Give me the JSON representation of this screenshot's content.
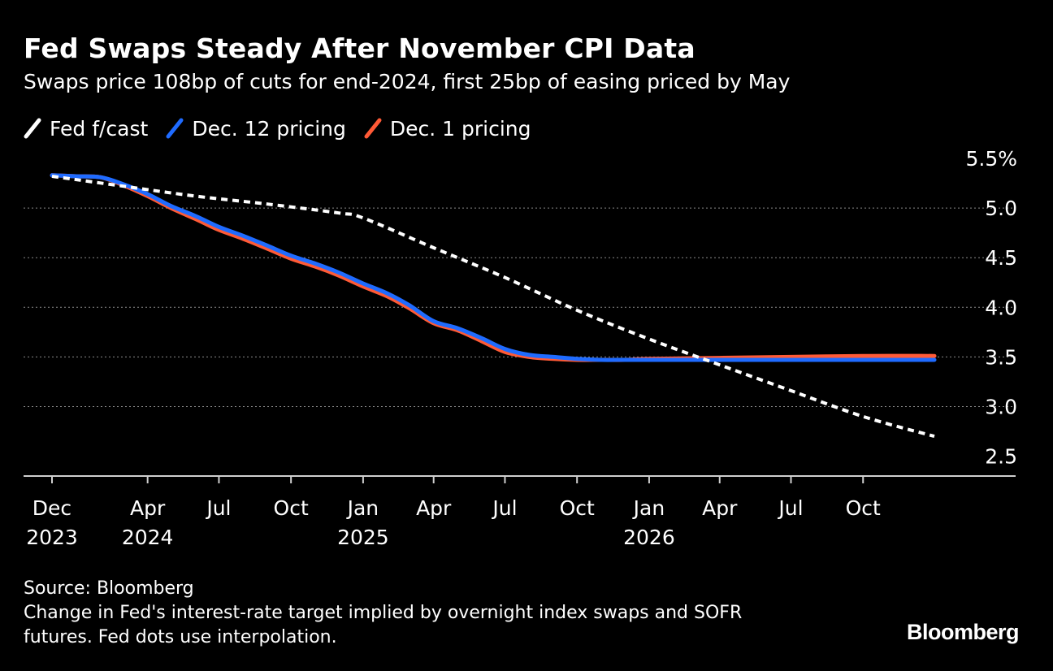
{
  "header": {
    "title": "Fed Swaps Steady After November CPI Data",
    "subtitle": "Swaps price 108bp of cuts for end-2024, first 25bp of easing priced by May"
  },
  "legend": [
    {
      "label": "Fed f/cast",
      "color": "#ffffff",
      "style": "dashed"
    },
    {
      "label": "Dec. 12 pricing",
      "color": "#1f6bff",
      "style": "solid"
    },
    {
      "label": "Dec. 1 pricing",
      "color": "#ff5a36",
      "style": "solid"
    }
  ],
  "footer": {
    "source": "Source: Bloomberg",
    "note_line1": "Change in Fed's interest-rate target implied by overnight index swaps and SOFR",
    "note_line2": "futures. Fed dots use interpolation."
  },
  "brand": "Bloomberg",
  "chart_data": {
    "type": "line",
    "title": "Fed Swaps Steady After November CPI Data",
    "subtitle": "Swaps price 108bp of cuts for end-2024, first 25bp of easing priced by May",
    "xlabel": "",
    "ylabel": "",
    "ylim": [
      2.3,
      5.5
    ],
    "xlim": [
      "2023-12-01",
      "2026-12-31"
    ],
    "yticks": [
      {
        "value": 5.5,
        "label": "5.5%"
      },
      {
        "value": 5.0,
        "label": "5.0"
      },
      {
        "value": 4.5,
        "label": "4.5"
      },
      {
        "value": 4.0,
        "label": "4.0"
      },
      {
        "value": 3.5,
        "label": "3.5"
      },
      {
        "value": 3.0,
        "label": "3.0"
      },
      {
        "value": 2.5,
        "label": "2.5"
      }
    ],
    "xticks": [
      {
        "date": "2023-12-01",
        "line1": "Dec",
        "line2": "2023"
      },
      {
        "date": "2024-04-01",
        "line1": "Apr",
        "line2": "2024"
      },
      {
        "date": "2024-07-01",
        "line1": "Jul",
        "line2": ""
      },
      {
        "date": "2024-10-01",
        "line1": "Oct",
        "line2": ""
      },
      {
        "date": "2025-01-01",
        "line1": "Jan",
        "line2": "2025"
      },
      {
        "date": "2025-04-01",
        "line1": "Apr",
        "line2": ""
      },
      {
        "date": "2025-07-01",
        "line1": "Jul",
        "line2": ""
      },
      {
        "date": "2025-10-01",
        "line1": "Oct",
        "line2": ""
      },
      {
        "date": "2026-01-01",
        "line1": "Jan",
        "line2": "2026"
      },
      {
        "date": "2026-04-01",
        "line1": "Apr",
        "line2": ""
      },
      {
        "date": "2026-07-01",
        "line1": "Jul",
        "line2": ""
      },
      {
        "date": "2026-10-01",
        "line1": "Oct",
        "line2": ""
      }
    ],
    "grid": true,
    "legend_position": "top-left",
    "series": [
      {
        "name": "Fed f/cast",
        "color": "#ffffff",
        "dash": true,
        "points": [
          [
            "2023-12-01",
            5.32
          ],
          [
            "2024-03-01",
            5.22
          ],
          [
            "2024-06-01",
            5.12
          ],
          [
            "2024-09-01",
            5.04
          ],
          [
            "2024-12-01",
            4.95
          ],
          [
            "2025-01-01",
            4.9
          ],
          [
            "2025-04-01",
            4.6
          ],
          [
            "2025-07-01",
            4.3
          ],
          [
            "2025-10-01",
            3.97
          ],
          [
            "2026-01-01",
            3.68
          ],
          [
            "2026-04-01",
            3.42
          ],
          [
            "2026-07-01",
            3.16
          ],
          [
            "2026-10-01",
            2.9
          ],
          [
            "2026-12-31",
            2.7
          ]
        ]
      },
      {
        "name": "Dec. 12 pricing",
        "color": "#1f6bff",
        "dash": false,
        "points": [
          [
            "2023-12-01",
            5.33
          ],
          [
            "2024-01-01",
            5.32
          ],
          [
            "2024-02-01",
            5.31
          ],
          [
            "2024-03-01",
            5.24
          ],
          [
            "2024-04-01",
            5.14
          ],
          [
            "2024-05-01",
            5.02
          ],
          [
            "2024-06-01",
            4.92
          ],
          [
            "2024-07-01",
            4.81
          ],
          [
            "2024-08-01",
            4.72
          ],
          [
            "2024-09-01",
            4.62
          ],
          [
            "2024-10-01",
            4.52
          ],
          [
            "2024-11-01",
            4.44
          ],
          [
            "2024-12-01",
            4.35
          ],
          [
            "2025-01-01",
            4.24
          ],
          [
            "2025-02-01",
            4.14
          ],
          [
            "2025-03-01",
            4.02
          ],
          [
            "2025-04-01",
            3.86
          ],
          [
            "2025-05-01",
            3.79
          ],
          [
            "2025-06-01",
            3.69
          ],
          [
            "2025-07-01",
            3.58
          ],
          [
            "2025-08-01",
            3.52
          ],
          [
            "2025-09-01",
            3.5
          ],
          [
            "2025-10-01",
            3.48
          ],
          [
            "2025-11-01",
            3.47
          ],
          [
            "2025-12-01",
            3.47
          ],
          [
            "2026-01-01",
            3.47
          ],
          [
            "2026-04-01",
            3.47
          ],
          [
            "2026-07-01",
            3.47
          ],
          [
            "2026-10-01",
            3.47
          ],
          [
            "2026-12-31",
            3.47
          ]
        ]
      },
      {
        "name": "Dec. 1 pricing",
        "color": "#ff5a36",
        "dash": false,
        "points": [
          [
            "2023-12-01",
            5.33
          ],
          [
            "2024-01-01",
            5.32
          ],
          [
            "2024-02-01",
            5.31
          ],
          [
            "2024-03-01",
            5.23
          ],
          [
            "2024-04-01",
            5.12
          ],
          [
            "2024-05-01",
            5.0
          ],
          [
            "2024-06-01",
            4.89
          ],
          [
            "2024-07-01",
            4.78
          ],
          [
            "2024-08-01",
            4.69
          ],
          [
            "2024-09-01",
            4.59
          ],
          [
            "2024-10-01",
            4.49
          ],
          [
            "2024-11-01",
            4.41
          ],
          [
            "2024-12-01",
            4.32
          ],
          [
            "2025-01-01",
            4.21
          ],
          [
            "2025-02-01",
            4.11
          ],
          [
            "2025-03-01",
            3.99
          ],
          [
            "2025-04-01",
            3.84
          ],
          [
            "2025-05-01",
            3.77
          ],
          [
            "2025-06-01",
            3.66
          ],
          [
            "2025-07-01",
            3.55
          ],
          [
            "2025-08-01",
            3.5
          ],
          [
            "2025-09-01",
            3.48
          ],
          [
            "2025-10-01",
            3.47
          ],
          [
            "2025-11-01",
            3.47
          ],
          [
            "2025-12-01",
            3.47
          ],
          [
            "2026-01-01",
            3.48
          ],
          [
            "2026-04-01",
            3.49
          ],
          [
            "2026-07-01",
            3.5
          ],
          [
            "2026-10-01",
            3.51
          ],
          [
            "2026-12-31",
            3.51
          ]
        ]
      }
    ]
  }
}
